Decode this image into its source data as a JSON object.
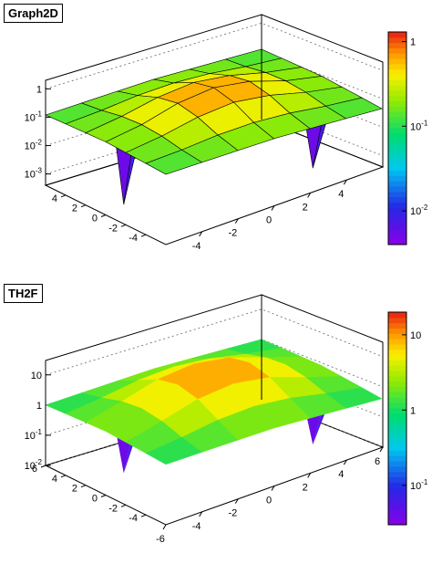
{
  "chart_data": [
    {
      "type": "surface",
      "title": "Graph2D",
      "xlabel": "",
      "ylabel": "",
      "zlabel": "",
      "z_scale": "log",
      "xlim": [
        -6,
        6
      ],
      "ylim": [
        -6,
        6
      ],
      "zlim": [
        0.0004,
        2
      ],
      "x_ticks": [
        "-4",
        "-2",
        "0",
        "2",
        "4"
      ],
      "y_ticks": [
        "-4",
        "-2",
        "0",
        "2",
        "4"
      ],
      "z_ticks": [
        "1",
        "10-1",
        "10-2",
        "10-3"
      ],
      "colorbar_ticks": [
        "1",
        "10-1",
        "10-2"
      ],
      "colorbar_range": [
        0.004,
        1.3
      ],
      "grid": true,
      "surface": {
        "grid_x": [
          -6,
          -4,
          -2,
          0,
          2,
          4,
          6
        ],
        "grid_y": [
          -6,
          -4,
          -2,
          0,
          2,
          4,
          6
        ],
        "z": [
          [
            0.12,
            0.13,
            0.14,
            0.15,
            0.14,
            0.13,
            0.12
          ],
          [
            0.13,
            0.16,
            0.22,
            0.25,
            0.22,
            0.16,
            0.13
          ],
          [
            0.14,
            0.22,
            0.42,
            0.58,
            0.42,
            0.22,
            0.14
          ],
          [
            0.15,
            0.25,
            0.58,
            0.85,
            0.58,
            0.25,
            0.15
          ],
          [
            0.14,
            0.22,
            0.42,
            0.58,
            0.42,
            0.22,
            0.14
          ],
          [
            0.13,
            0.16,
            0.22,
            0.25,
            0.22,
            0.16,
            0.13
          ],
          [
            0.12,
            0.13,
            0.14,
            0.15,
            0.14,
            0.13,
            0.12
          ]
        ]
      },
      "spikes": [
        {
          "x": -5,
          "y": -2,
          "z": 0.0008
        },
        {
          "x": 0,
          "y": -5,
          "z": 0.0006
        },
        {
          "x": 4.5,
          "y": 3,
          "z": 0.002
        },
        {
          "x": -3,
          "y": 4.5,
          "z": 0.003
        }
      ]
    },
    {
      "type": "surface",
      "title": "TH2F",
      "xlabel": "",
      "ylabel": "",
      "zlabel": "",
      "z_scale": "log",
      "xlim": [
        -6,
        6
      ],
      "ylim": [
        -6,
        6
      ],
      "zlim": [
        0.01,
        30
      ],
      "x_ticks": [
        "-6",
        "-4",
        "-2",
        "0",
        "2",
        "4",
        "6"
      ],
      "y_ticks": [
        "-4",
        "-2",
        "0",
        "2",
        "4",
        "6"
      ],
      "z_ticks": [
        "10",
        "1",
        "10-1",
        "10-2"
      ],
      "colorbar_ticks": [
        "10",
        "1",
        "10-1"
      ],
      "colorbar_range": [
        0.03,
        20
      ],
      "grid": true,
      "surface": {
        "grid_x": [
          -6,
          -4,
          -2,
          0,
          2,
          4,
          6
        ],
        "grid_y": [
          -6,
          -4,
          -2,
          0,
          2,
          4,
          6
        ],
        "z": [
          [
            1.0,
            1.1,
            1.2,
            1.3,
            1.2,
            1.1,
            1.0
          ],
          [
            1.1,
            1.6,
            2.6,
            3.2,
            2.6,
            1.6,
            1.1
          ],
          [
            1.2,
            2.6,
            6.0,
            8.5,
            6.0,
            2.6,
            1.2
          ],
          [
            1.3,
            3.2,
            8.5,
            12.0,
            8.5,
            3.2,
            1.3
          ],
          [
            1.2,
            2.6,
            6.0,
            8.5,
            6.0,
            2.6,
            1.2
          ],
          [
            1.1,
            1.6,
            2.6,
            3.2,
            2.6,
            1.6,
            1.1
          ],
          [
            1.0,
            1.1,
            1.2,
            1.3,
            1.2,
            1.1,
            1.0
          ]
        ]
      },
      "spikes": [
        {
          "x": -5,
          "y": -2,
          "z": 0.04
        },
        {
          "x": 0,
          "y": -5,
          "z": 0.035
        },
        {
          "x": 4.5,
          "y": 3,
          "z": 0.06
        },
        {
          "x": -3,
          "y": 4.5,
          "z": 0.08
        }
      ]
    }
  ]
}
